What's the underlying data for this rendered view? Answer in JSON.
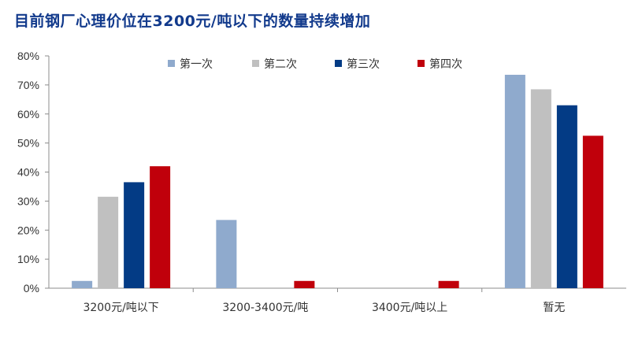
{
  "chart_data": {
    "type": "bar",
    "title": "目前钢厂心理价位在3200元/吨以下的数量持续增加",
    "categories": [
      "3200元/吨以下",
      "3200-3400元/吨",
      "3400元/吨以上",
      "暂无"
    ],
    "series": [
      {
        "name": "第一次",
        "color": "#8faacd",
        "values": [
          2.5,
          23.5,
          0,
          73.5
        ]
      },
      {
        "name": "第二次",
        "color": "#c0c0c0",
        "values": [
          31.5,
          0,
          0,
          68.5
        ]
      },
      {
        "name": "第三次",
        "color": "#033b85",
        "values": [
          36.5,
          0,
          0,
          63
        ]
      },
      {
        "name": "第四次",
        "color": "#c0000b",
        "values": [
          42,
          2.5,
          2.5,
          52.5
        ]
      }
    ],
    "y_ticks": [
      "0%",
      "10%",
      "20%",
      "30%",
      "40%",
      "50%",
      "60%",
      "70%",
      "80%"
    ],
    "ylim": [
      0,
      80
    ],
    "legend": "top",
    "grid": false
  }
}
